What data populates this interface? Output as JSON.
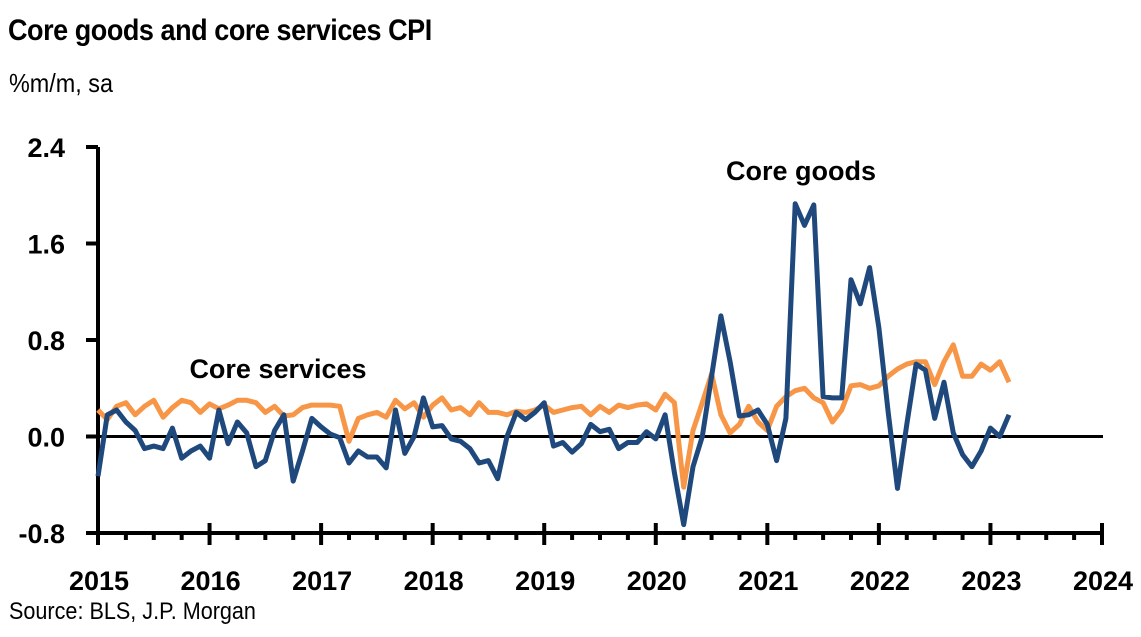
{
  "chart_data": {
    "type": "line",
    "title": "Core goods and core services CPI",
    "subtitle": "%m/m, sa",
    "source": "Source: BLS, J.P. Morgan",
    "xlabel": "",
    "ylabel": "",
    "x_start": "2015-01",
    "x_frequency": "monthly",
    "xlim": [
      2015,
      2024
    ],
    "ylim": [
      -0.8,
      2.4
    ],
    "yticks": [
      -0.8,
      0.0,
      0.8,
      1.6,
      2.4
    ],
    "ytick_labels": [
      "-0.8",
      "0.0",
      "0.8",
      "1.6",
      "2.4"
    ],
    "xticks": [
      2015,
      2016,
      2017,
      2018,
      2019,
      2020,
      2021,
      2022,
      2023,
      2024
    ],
    "xtick_labels": [
      "2015",
      "2016",
      "2017",
      "2018",
      "2019",
      "2020",
      "2021",
      "2022",
      "2023",
      "2024"
    ],
    "grid": false,
    "zero_line": true,
    "annotations": [
      {
        "text": "Core goods",
        "series": "Core goods",
        "near": [
          2021.7,
          2.2
        ]
      },
      {
        "text": "Core services",
        "series": "Core services",
        "near": [
          2016.5,
          0.55
        ]
      }
    ],
    "series": [
      {
        "name": "Core goods",
        "color": "#1f497d",
        "values": [
          -0.33,
          0.18,
          0.22,
          0.12,
          0.05,
          -0.1,
          -0.08,
          -0.1,
          0.07,
          -0.18,
          -0.12,
          -0.08,
          -0.18,
          0.22,
          -0.06,
          0.12,
          0.03,
          -0.25,
          -0.2,
          0.05,
          0.18,
          -0.37,
          -0.12,
          0.15,
          0.08,
          0.02,
          -0.01,
          -0.22,
          -0.12,
          -0.17,
          -0.17,
          -0.26,
          0.22,
          -0.14,
          0.0,
          0.32,
          0.08,
          0.09,
          -0.02,
          -0.04,
          -0.1,
          -0.22,
          -0.2,
          -0.35,
          0.0,
          0.2,
          0.14,
          0.2,
          0.28,
          -0.08,
          -0.05,
          -0.13,
          -0.06,
          0.1,
          0.04,
          0.06,
          -0.1,
          -0.05,
          -0.05,
          0.04,
          -0.02,
          0.18,
          -0.3,
          -0.73,
          -0.25,
          0.0,
          0.5,
          1.0,
          0.62,
          0.17,
          0.18,
          0.22,
          0.1,
          -0.2,
          0.15,
          1.93,
          1.75,
          1.92,
          0.33,
          0.32,
          0.32,
          1.3,
          1.1,
          1.4,
          0.9,
          0.2,
          -0.43,
          0.1,
          0.6,
          0.55,
          0.15,
          0.45,
          0.03,
          -0.15,
          -0.25,
          -0.12,
          0.07,
          0.0,
          0.18
        ]
      },
      {
        "name": "Core services",
        "color": "#f79646",
        "values": [
          0.22,
          0.14,
          0.25,
          0.28,
          0.18,
          0.25,
          0.3,
          0.16,
          0.24,
          0.3,
          0.28,
          0.2,
          0.27,
          0.23,
          0.26,
          0.3,
          0.3,
          0.28,
          0.2,
          0.25,
          0.17,
          0.18,
          0.24,
          0.26,
          0.26,
          0.26,
          0.25,
          -0.04,
          0.15,
          0.18,
          0.2,
          0.16,
          0.3,
          0.23,
          0.28,
          0.16,
          0.26,
          0.32,
          0.22,
          0.24,
          0.18,
          0.28,
          0.2,
          0.2,
          0.18,
          0.21,
          0.2,
          0.22,
          0.26,
          0.2,
          0.22,
          0.24,
          0.25,
          0.18,
          0.25,
          0.2,
          0.26,
          0.24,
          0.26,
          0.27,
          0.22,
          0.35,
          0.28,
          -0.42,
          0.05,
          0.28,
          0.52,
          0.18,
          0.03,
          0.1,
          0.25,
          0.12,
          0.05,
          0.25,
          0.33,
          0.38,
          0.4,
          0.32,
          0.28,
          0.12,
          0.22,
          0.42,
          0.43,
          0.4,
          0.42,
          0.5,
          0.56,
          0.6,
          0.62,
          0.62,
          0.43,
          0.62,
          0.76,
          0.5,
          0.5,
          0.6,
          0.55,
          0.62,
          0.45
        ]
      }
    ]
  }
}
